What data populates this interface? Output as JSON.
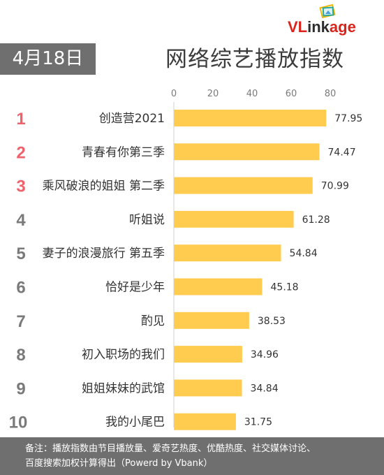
{
  "header": {
    "date": "4月18日",
    "title": "网络综艺播放指数",
    "logo": "VLinkage"
  },
  "footer": {
    "note_line1": "备注：播放指数由节目播放量、爱奇艺热度、优酷热度、社交媒体讨论、",
    "note_line2": "百度搜索加权计算得出（Powerd by Vbank）"
  },
  "colors": {
    "bar": "#ffcc4f",
    "rank_top3": "#f0616b",
    "rank_other": "#7a7a7a",
    "badge_bg": "#6f6f6f"
  },
  "chart_data": {
    "type": "bar",
    "orientation": "horizontal",
    "ranks": [
      "1",
      "2",
      "3",
      "4",
      "5",
      "6",
      "7",
      "8",
      "9",
      "10"
    ],
    "categories": [
      "创造营2021",
      "青春有你第三季",
      "乘风破浪的姐姐 第二季",
      "听姐说",
      "妻子的浪漫旅行 第五季",
      "恰好是少年",
      "酌见",
      "初入职场的我们",
      "姐姐妹妹的武馆",
      "我的小尾巴"
    ],
    "values": [
      77.95,
      74.47,
      70.99,
      61.28,
      54.84,
      45.18,
      38.53,
      34.96,
      34.84,
      31.75
    ],
    "value_labels": [
      "77.95",
      "74.47",
      "70.99",
      "61.28",
      "54.84",
      "45.18",
      "38.53",
      "34.96",
      "34.84",
      "31.75"
    ],
    "xticks": [
      0,
      20,
      40,
      60,
      80
    ],
    "xlim": [
      0,
      100
    ],
    "grid": false,
    "legend": "none"
  }
}
